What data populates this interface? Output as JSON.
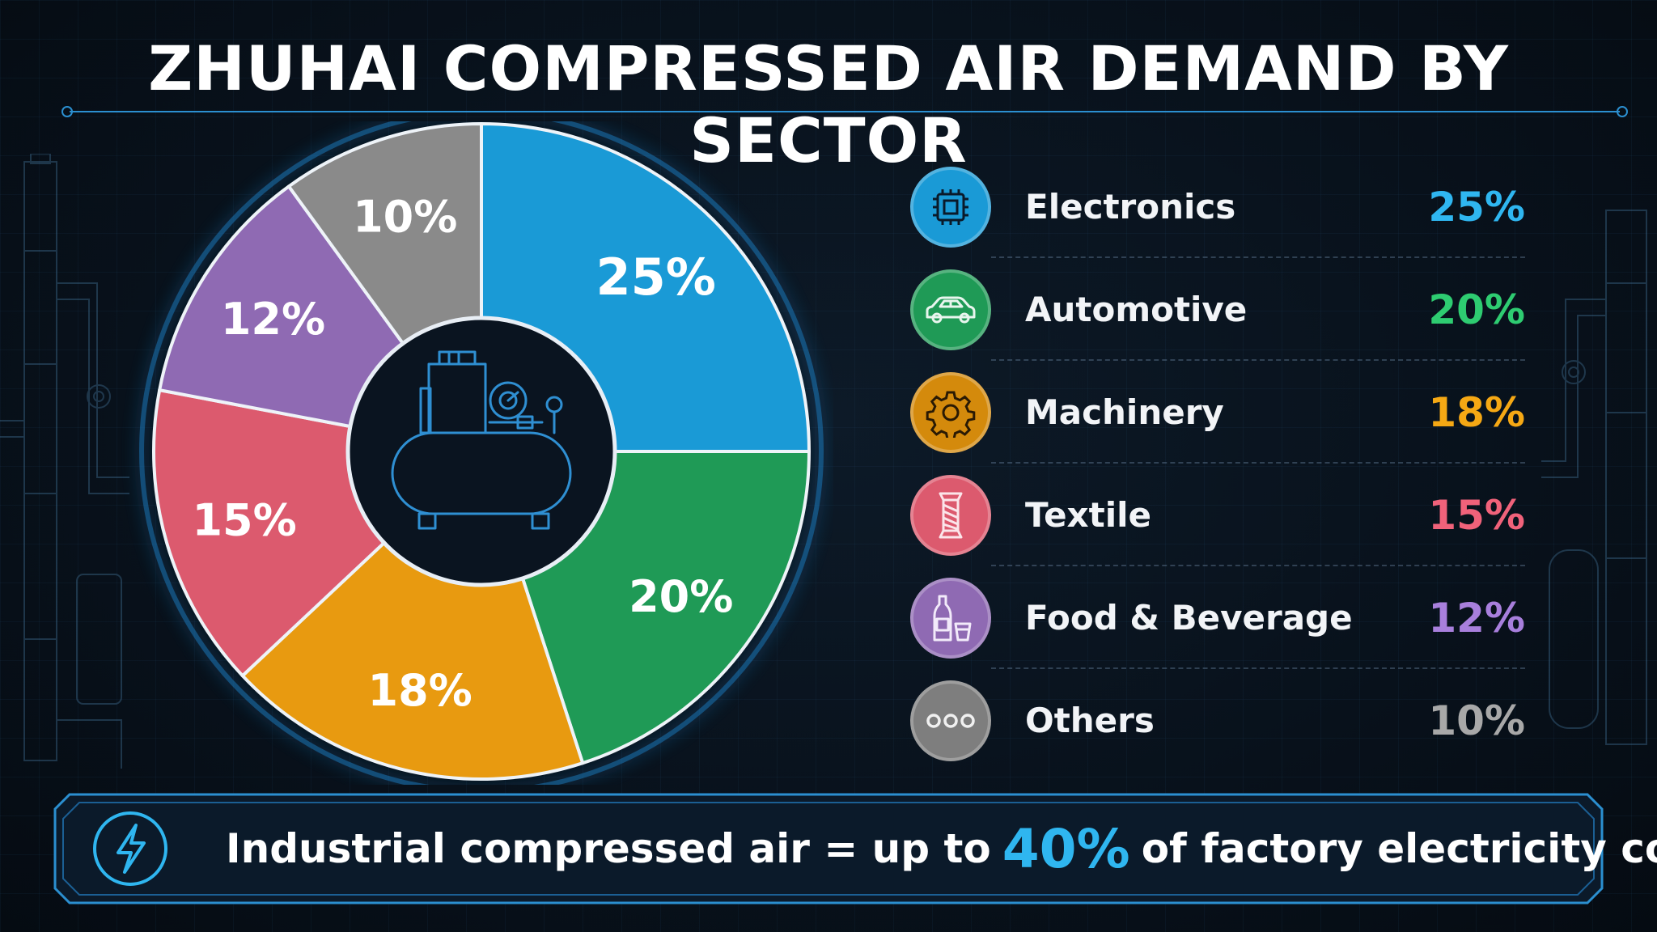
{
  "title": "ZHUHAI COMPRESSED AIR DEMAND BY SECTOR",
  "colors": {
    "background": "#08111b",
    "accent": "#2fb6f0",
    "electronics": "#1a9ad6",
    "automotive": "#1f9a56",
    "machinery": "#e89a10",
    "textile": "#dc5a6e",
    "food_beverage": "#8f6ab3",
    "others": "#8a8a8a"
  },
  "chart_data": {
    "type": "pie",
    "variant": "donut",
    "categories": [
      "Electronics",
      "Automotive",
      "Machinery",
      "Textile",
      "Food & Beverage",
      "Others"
    ],
    "values": [
      25,
      20,
      18,
      15,
      12,
      10
    ],
    "unit": "%",
    "data_labels": [
      "25%",
      "20%",
      "18%",
      "15%",
      "12%",
      "10%"
    ],
    "center_icon": "air-compressor-icon",
    "legend_placement": "right"
  },
  "legend": [
    {
      "label": "Electronics",
      "value": "25%",
      "icon": "chip-icon"
    },
    {
      "label": "Automotive",
      "value": "20%",
      "icon": "car-icon"
    },
    {
      "label": "Machinery",
      "value": "18%",
      "icon": "gear-icon"
    },
    {
      "label": "Textile",
      "value": "15%",
      "icon": "thread-spool-icon"
    },
    {
      "label": "Food & Beverage",
      "value": "12%",
      "icon": "bottle-glass-icon"
    },
    {
      "label": "Others",
      "value": "10%",
      "icon": "more-dots-icon"
    }
  ],
  "banner": {
    "icon": "lightning-icon",
    "text_before": "Industrial compressed air = up to",
    "highlight": "40%",
    "text_after": "of factory electricity cost."
  }
}
